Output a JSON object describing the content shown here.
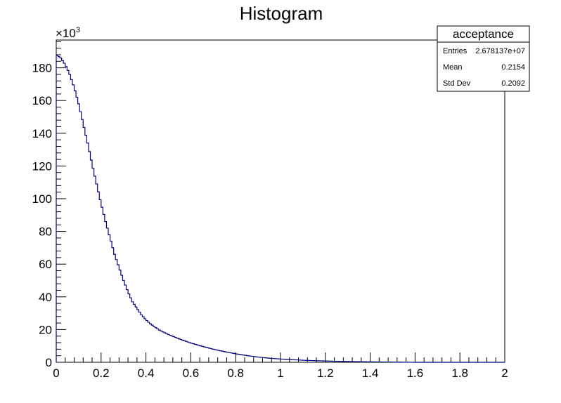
{
  "chart_data": {
    "type": "histogram",
    "title": "Histogram",
    "xlabel": "",
    "ylabel": "",
    "xlim": [
      0,
      2
    ],
    "ylim": [
      0,
      197
    ],
    "y_multiplier_label": "×10",
    "y_multiplier_exponent": "3",
    "x_ticks": [
      "0",
      "0.2",
      "0.4",
      "0.6",
      "0.8",
      "1",
      "1.2",
      "1.4",
      "1.6",
      "1.8",
      "2"
    ],
    "y_ticks": [
      "0",
      "20",
      "40",
      "60",
      "80",
      "100",
      "120",
      "140",
      "160",
      "180"
    ],
    "line_color": "#000080",
    "grid": false,
    "legend_position": "top-right",
    "stats_box": {
      "name": "acceptance",
      "rows": [
        {
          "label": "Entries",
          "value": "2.678137e+07"
        },
        {
          "label": "Mean",
          "value": "0.2154"
        },
        {
          "label": "Std Dev",
          "value": "0.2092"
        }
      ]
    },
    "series": [
      {
        "x": [
          0,
          0.02,
          0.04,
          0.06,
          0.08,
          0.1,
          0.12,
          0.14,
          0.16,
          0.18,
          0.2,
          0.22,
          0.24,
          0.26,
          0.28,
          0.3,
          0.32,
          0.34,
          0.36,
          0.38,
          0.4,
          0.42,
          0.44,
          0.46,
          0.48,
          0.5,
          0.55,
          0.6,
          0.65,
          0.7,
          0.75,
          0.8,
          0.85,
          0.9,
          0.95,
          1.0,
          1.05,
          1.1,
          1.15,
          1.2,
          1.25,
          1.3,
          1.35,
          1.4,
          1.45,
          1.5,
          1.55,
          1.6
        ],
        "y": [
          188,
          186,
          182,
          176,
          168,
          158,
          146,
          134,
          121,
          109,
          97,
          86,
          76,
          66,
          58,
          50,
          43,
          37,
          33,
          29,
          26,
          23.5,
          21.5,
          19.7,
          18.3,
          17,
          14.2,
          11.8,
          9.8,
          8,
          6.5,
          5.2,
          4.1,
          3.2,
          2.5,
          2,
          1.6,
          1.25,
          1,
          0.8,
          0.62,
          0.48,
          0.37,
          0.28,
          0.2,
          0.14,
          0.08,
          0
        ]
      }
    ]
  }
}
